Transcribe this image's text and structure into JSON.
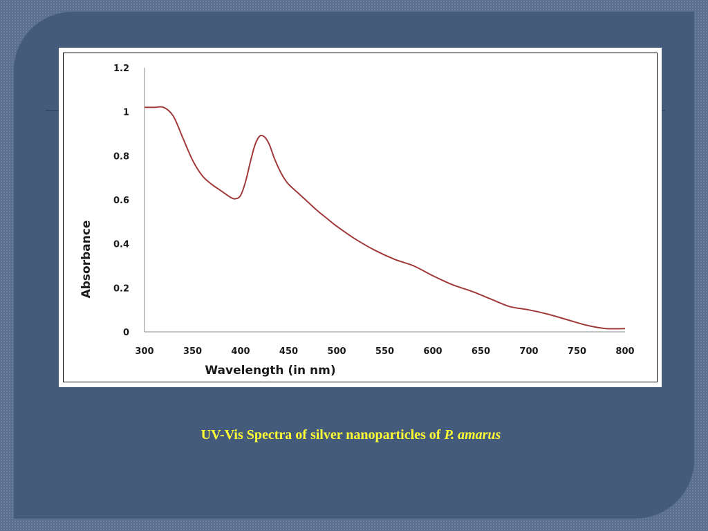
{
  "caption": {
    "text": "UV-Vis Spectra of silver nanoparticles of ",
    "species": "P. amarus"
  },
  "colors": {
    "line": "#a03a3a",
    "axis": "#888888",
    "caption": "#ffff33"
  },
  "chart_data": {
    "type": "line",
    "title": "",
    "xlabel": "Wavelength (in nm)",
    "ylabel": "Absorbance",
    "xlim": [
      300,
      800
    ],
    "ylim": [
      0,
      1.2
    ],
    "xticks": [
      300,
      350,
      400,
      450,
      500,
      550,
      600,
      650,
      700,
      750,
      800
    ],
    "yticks": [
      0,
      0.2,
      0.4,
      0.6,
      0.8,
      1,
      1.2
    ],
    "grid": false,
    "legend": "none",
    "series": [
      {
        "x": [
          300,
          310,
          320,
          330,
          340,
          350,
          360,
          370,
          380,
          390,
          395,
          400,
          405,
          410,
          415,
          420,
          425,
          430,
          435,
          440,
          445,
          450,
          460,
          470,
          480,
          490,
          500,
          520,
          540,
          560,
          580,
          600,
          620,
          640,
          660,
          680,
          700,
          720,
          740,
          760,
          780,
          800
        ],
        "y": [
          1.02,
          1.02,
          1.02,
          0.98,
          0.88,
          0.78,
          0.71,
          0.67,
          0.64,
          0.61,
          0.605,
          0.62,
          0.68,
          0.77,
          0.85,
          0.89,
          0.885,
          0.85,
          0.79,
          0.74,
          0.7,
          0.67,
          0.63,
          0.59,
          0.55,
          0.515,
          0.48,
          0.42,
          0.37,
          0.33,
          0.3,
          0.255,
          0.215,
          0.185,
          0.15,
          0.115,
          0.1,
          0.08,
          0.055,
          0.03,
          0.015,
          0.015
        ]
      }
    ]
  }
}
